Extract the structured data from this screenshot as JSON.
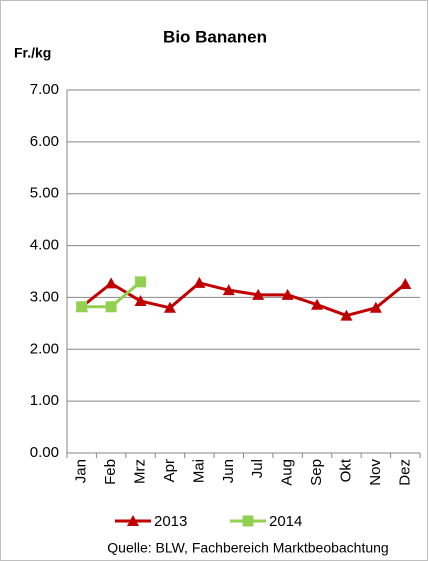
{
  "chart_data": {
    "type": "line",
    "title": "Bio Bananen",
    "y_label": "Fr./kg",
    "categories": [
      "Jan",
      "Feb",
      "Mrz",
      "Apr",
      "Mai",
      "Jun",
      "Jul",
      "Aug",
      "Sep",
      "Okt",
      "Nov",
      "Dez"
    ],
    "series": [
      {
        "name": "2013",
        "color": "#c00000",
        "marker": "triangle",
        "values": [
          2.82,
          3.27,
          2.93,
          2.8,
          3.28,
          3.14,
          3.05,
          3.05,
          2.86,
          2.65,
          2.8,
          3.26
        ]
      },
      {
        "name": "2014",
        "color": "#92d050",
        "marker": "square",
        "values": [
          2.82,
          2.82,
          3.3,
          null,
          null,
          null,
          null,
          null,
          null,
          null,
          null,
          null
        ]
      }
    ],
    "ylim": [
      0,
      7
    ],
    "yticks": [
      {
        "value": 0,
        "label": "0.00"
      },
      {
        "value": 1,
        "label": "1.00"
      },
      {
        "value": 2,
        "label": "2.00"
      },
      {
        "value": 3,
        "label": "3.00"
      },
      {
        "value": 4,
        "label": "4.00"
      },
      {
        "value": 5,
        "label": "5.00"
      },
      {
        "value": 6,
        "label": "6.00"
      },
      {
        "value": 7,
        "label": "7.00"
      }
    ],
    "grid": true,
    "legend": "bottom",
    "source": "Quelle: BLW, Fachbereich Marktbeobachtung"
  }
}
